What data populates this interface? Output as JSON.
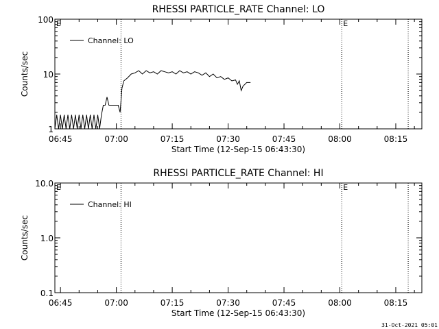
{
  "footer": "31-Oct-2021 05:01",
  "chart_data": [
    {
      "type": "line",
      "title": "RHESSI PARTICLE_RATE Channel: LO",
      "xlabel": "Start Time (12-Sep-15 06:43:30)",
      "ylabel": "Counts/sec",
      "yscale": "log",
      "ylim": [
        1,
        100
      ],
      "yticks": [
        1,
        10,
        100
      ],
      "ytick_labels": [
        "1",
        "10",
        "100"
      ],
      "xlim": [
        "06:43:30",
        "08:22:00"
      ],
      "xticks": [
        "06:45",
        "07:00",
        "07:15",
        "07:30",
        "07:45",
        "08:00",
        "08:15"
      ],
      "vlines": [
        "07:01:15",
        "08:00:30",
        "08:18:20"
      ],
      "markers": [
        {
          "label": "E",
          "time": "06:43:30"
        },
        {
          "label": "E",
          "time": "08:00:30"
        }
      ],
      "legend": "top-left",
      "series": [
        {
          "name": "Channel: LO",
          "x": [
            "06:43:30",
            "06:44:00",
            "06:44:30",
            "06:45:00",
            "06:45:30",
            "06:46:00",
            "06:46:30",
            "06:47:00",
            "06:47:30",
            "06:48:00",
            "06:48:30",
            "06:49:00",
            "06:49:30",
            "06:50:00",
            "06:50:30",
            "06:51:00",
            "06:51:30",
            "06:52:00",
            "06:52:30",
            "06:53:00",
            "06:53:30",
            "06:54:00",
            "06:54:30",
            "06:55:00",
            "06:55:30",
            "06:56:00",
            "06:56:30",
            "06:57:00",
            "06:57:30",
            "06:58:00",
            "06:58:30",
            "06:59:00",
            "06:59:30",
            "07:00:00",
            "07:00:30",
            "07:01:00",
            "07:01:30",
            "07:02:00",
            "07:03:00",
            "07:04:00",
            "07:05:00",
            "07:06:00",
            "07:07:00",
            "07:08:00",
            "07:09:00",
            "07:10:00",
            "07:11:00",
            "07:12:00",
            "07:13:00",
            "07:14:00",
            "07:15:00",
            "07:16:00",
            "07:17:00",
            "07:18:00",
            "07:19:00",
            "07:20:00",
            "07:21:00",
            "07:22:00",
            "07:23:00",
            "07:24:00",
            "07:25:00",
            "07:26:00",
            "07:27:00",
            "07:28:00",
            "07:29:00",
            "07:30:00",
            "07:31:00",
            "07:32:00",
            "07:32:30",
            "07:33:00",
            "07:33:30",
            "07:34:00",
            "07:35:00",
            "07:36:00"
          ],
          "values": [
            1.0,
            1.8,
            1.0,
            1.8,
            1.0,
            1.8,
            1.0,
            1.8,
            1.0,
            1.8,
            1.0,
            1.8,
            1.0,
            1.8,
            1.0,
            1.8,
            1.0,
            1.8,
            1.0,
            1.8,
            1.0,
            1.8,
            1.0,
            1.8,
            1.0,
            1.8,
            2.7,
            2.7,
            3.8,
            2.7,
            2.7,
            2.7,
            2.7,
            2.7,
            2.7,
            2.0,
            5.5,
            7.5,
            8.5,
            10.0,
            10.5,
            11.5,
            10.0,
            11.5,
            10.5,
            11.0,
            10.0,
            11.5,
            11.0,
            10.5,
            11.0,
            10.0,
            11.5,
            10.5,
            11.0,
            10.0,
            11.0,
            10.5,
            9.5,
            10.5,
            9.0,
            10.0,
            8.5,
            9.0,
            8.0,
            8.5,
            7.5,
            7.8,
            6.5,
            7.5,
            5.0,
            6.0,
            7.0,
            7.0
          ]
        }
      ]
    },
    {
      "type": "line",
      "title": "RHESSI PARTICLE_RATE Channel: HI",
      "xlabel": "Start Time (12-Sep-15 06:43:30)",
      "ylabel": "Counts/sec",
      "yscale": "log",
      "ylim": [
        0.1,
        10
      ],
      "yticks": [
        0.1,
        1,
        10
      ],
      "ytick_labels": [
        "0.1",
        "1.0",
        "10.0"
      ],
      "xlim": [
        "06:43:30",
        "08:22:00"
      ],
      "xticks": [
        "06:45",
        "07:00",
        "07:15",
        "07:30",
        "07:45",
        "08:00",
        "08:15"
      ],
      "vlines": [
        "07:01:15",
        "08:00:30",
        "08:18:20"
      ],
      "markers": [
        {
          "label": "E",
          "time": "06:43:30"
        },
        {
          "label": "E",
          "time": "08:00:30"
        }
      ],
      "legend": "top-left",
      "series": [
        {
          "name": "Channel: HI",
          "x": [],
          "values": []
        }
      ]
    }
  ]
}
